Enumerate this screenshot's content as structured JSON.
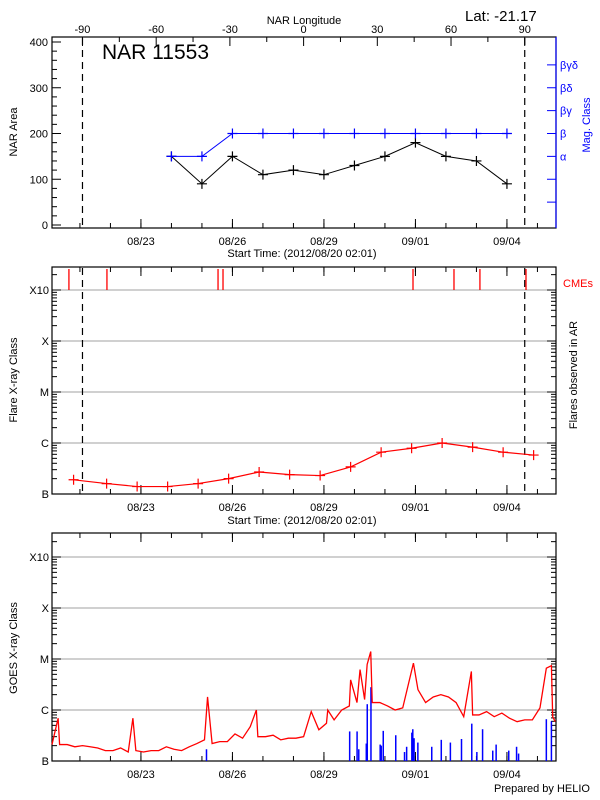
{
  "header": {
    "latitude_label": "Lat: -21.17",
    "top_axis_title": "NAR Longitude",
    "top_axis_ticks": [
      "-90",
      "-60",
      "-30",
      "0",
      "30",
      "60",
      "90"
    ],
    "footer": "Prepared by HELIO"
  },
  "colors": {
    "area": "#000000",
    "mag_class": "#0000ff",
    "flare": "#ff0000",
    "cme": "#ff0000",
    "goes": "#ff0000",
    "ar_flares": "#0000ff",
    "grid": "#a0a0a0"
  },
  "chart_data": [
    {
      "type": "line",
      "title": "NAR 11553",
      "xlabel": "Start Time: (2012/08/20 02:01)",
      "ylabel": "NAR Area",
      "y2label": "Mag. Class",
      "ylim": [
        0,
        400
      ],
      "yticks": [
        "0",
        "100",
        "200",
        "300",
        "400"
      ],
      "xticks": [
        "08/23",
        "08/26",
        "08/29",
        "09/01",
        "09/04"
      ],
      "limb_markers": [
        "08/21 02:00",
        "09/04 14:00"
      ],
      "mag_class_ticks": [
        "α",
        "β",
        "βγ",
        "βδ",
        "βγδ"
      ],
      "series": [
        {
          "key": "area",
          "x": [
            "08/24 00:00",
            "08/25 00:00",
            "08/26 00:00",
            "08/27 00:00",
            "08/28 00:00",
            "08/29 00:00",
            "08/30 00:00",
            "08/31 00:00",
            "09/01 00:00",
            "09/02 00:00",
            "09/03 00:00",
            "09/04 00:00"
          ],
          "values": [
            150,
            90,
            150,
            110,
            120,
            110,
            130,
            150,
            180,
            150,
            140,
            90
          ]
        },
        {
          "key": "mag_class",
          "x": [
            "08/24 00:00",
            "08/25 00:00",
            "08/26 00:00",
            "08/27 00:00",
            "08/28 00:00",
            "08/29 00:00",
            "08/30 00:00",
            "08/31 00:00",
            "09/01 00:00",
            "09/02 00:00",
            "09/03 00:00",
            "09/04 00:00"
          ],
          "values": [
            "α",
            "α",
            "β",
            "β",
            "β",
            "β",
            "β",
            "β",
            "β",
            "β",
            "β",
            "β"
          ]
        }
      ]
    },
    {
      "type": "line",
      "xlabel": "Start Time: (2012/08/20 02:01)",
      "ylabel": "Flare X-ray Class",
      "y2label": "Flares observed in AR",
      "cme_label": "CMEs",
      "yscale": "log",
      "ylim": [
        1e-07,
        0.0028
      ],
      "class_ticks": [
        {
          "label": "B",
          "flux": 1e-07
        },
        {
          "label": "C",
          "flux": 1e-06
        },
        {
          "label": "M",
          "flux": 1e-05
        },
        {
          "label": "X",
          "flux": 0.0001
        },
        {
          "label": "X10",
          "flux": 0.001
        }
      ],
      "grid": true,
      "xticks": [
        "08/23",
        "08/26",
        "08/29",
        "09/01",
        "09/04"
      ],
      "limb_markers": [
        "08/21 02:00",
        "09/04 14:00"
      ],
      "cmes": [
        "08/20 15:20",
        "08/21 21:15",
        "08/25 12:40",
        "08/25 16:35",
        "08/31 22:05",
        "09/02 06:20",
        "09/03 02:45",
        "09/04 15:00"
      ],
      "series": [
        {
          "key": "flare",
          "x": [
            "08/20 19:00",
            "08/21 21:00",
            "08/22 21:00",
            "08/23 21:00",
            "08/24 21:00",
            "08/25 21:00",
            "08/26 21:00",
            "08/27 21:00",
            "08/28 21:00",
            "08/29 21:00",
            "08/30 21:00",
            "08/31 21:00",
            "09/01 21:00",
            "09/02 21:00",
            "09/03 21:00",
            "09/04 21:00"
          ],
          "values": [
            1.9e-07,
            1.6e-07,
            1.4e-07,
            1.4e-07,
            1.6e-07,
            2e-07,
            2.7e-07,
            2.4e-07,
            2.3e-07,
            3.4e-07,
            6.6e-07,
            7.9e-07,
            1e-06,
            8.3e-07,
            6.6e-07,
            5.8e-07
          ]
        }
      ]
    },
    {
      "type": "line",
      "ylabel": "GOES X-ray Class",
      "yscale": "log",
      "ylim": [
        1e-07,
        0.0028
      ],
      "class_ticks": [
        {
          "label": "B",
          "flux": 1e-07
        },
        {
          "label": "C",
          "flux": 1e-06
        },
        {
          "label": "M",
          "flux": 1e-05
        },
        {
          "label": "X",
          "flux": 0.0001
        },
        {
          "label": "X10",
          "flux": 0.001
        }
      ],
      "grid": true,
      "xticks": [
        "08/23",
        "08/26",
        "08/29",
        "09/01",
        "09/04"
      ],
      "series": [
        {
          "key": "goes",
          "x": [
            "08/20 02:00",
            "08/20 06:50",
            "08/20 08:00",
            "08/20 14:00",
            "08/20 20:00",
            "08/21 02:00",
            "08/21 08:00",
            "08/21 14:00",
            "08/21 20:00",
            "08/22 02:00",
            "08/22 08:00",
            "08/22 14:00",
            "08/22 17:40",
            "08/22 20:00",
            "08/23 02:00",
            "08/23 08:00",
            "08/23 14:00",
            "08/23 20:00",
            "08/24 02:00",
            "08/24 08:00",
            "08/24 14:00",
            "08/24 20:00",
            "08/25 02:00",
            "08/25 04:25",
            "08/25 08:00",
            "08/25 14:00",
            "08/25 20:00",
            "08/26 02:00",
            "08/26 08:00",
            "08/26 14:00",
            "08/26 18:50",
            "08/26 20:00",
            "08/27 02:00",
            "08/27 08:00",
            "08/27 14:00",
            "08/27 20:00",
            "08/28 02:00",
            "08/28 08:00",
            "08/28 14:00",
            "08/28 20:00",
            "08/29 02:00",
            "08/29 03:00",
            "08/29 08:00",
            "08/29 14:00",
            "08/29 20:00",
            "08/29 21:00",
            "08/30 02:00",
            "08/30 04:25",
            "08/30 08:00",
            "08/30 10:00",
            "08/30 12:50",
            "08/30 14:00",
            "08/30 20:00",
            "08/31 02:00",
            "08/31 08:00",
            "08/31 14:00",
            "08/31 22:25",
            "09/01 02:00",
            "09/01 08:00",
            "09/01 14:00",
            "09/01 20:00",
            "09/02 02:00",
            "09/02 08:00",
            "09/02 14:00",
            "09/02 20:00",
            "09/02 21:00",
            "09/03 02:00",
            "09/03 08:00",
            "09/03 14:00",
            "09/03 20:00",
            "09/04 02:00",
            "09/04 08:00",
            "09/04 14:00",
            "09/04 20:00",
            "09/05 02:00",
            "09/05 07:00",
            "09/05 11:00",
            "09/05 12:00",
            "09/05 14:00"
          ],
          "values": [
            2.1e-07,
            6.9e-07,
            2.1e-07,
            2.1e-07,
            1.9e-07,
            2e-07,
            1.9e-07,
            1.8e-07,
            1.6e-07,
            1.6e-07,
            1.8e-07,
            1.5e-07,
            6.9e-07,
            1.6e-07,
            1.5e-07,
            1.6e-07,
            1.6e-07,
            1.9e-07,
            1.7e-07,
            1.6e-07,
            1.9e-07,
            2.2e-07,
            2.6e-07,
            1.8e-06,
            2.2e-07,
            2.4e-07,
            2.4e-07,
            3.4e-07,
            2.8e-07,
            4.7e-07,
            1e-06,
            3e-07,
            3e-07,
            3.2e-07,
            2.6e-07,
            2.8e-07,
            2.8e-07,
            3e-07,
            9.3e-07,
            4.1e-07,
            5.5e-07,
            1e-06,
            6.4e-07,
            1e-06,
            1.2e-06,
            3.9e-06,
            1.4e-06,
            6.2e-06,
            1.6e-06,
            7.8e-06,
            1.4e-05,
            1.4e-06,
            1.4e-06,
            1.2e-06,
            1e-06,
            1.1e-06,
            8.3e-06,
            2.5e-06,
            1.4e-06,
            1.8e-06,
            2e-06,
            1.8e-06,
            1.4e-06,
            7.4e-07,
            5.7e-06,
            8e-07,
            8e-07,
            9.3e-07,
            7.4e-07,
            8.7e-07,
            6.9e-07,
            5.9e-07,
            6.4e-07,
            6.4e-07,
            1.1e-06,
            6.6e-06,
            7.4e-06,
            7.4e-07,
            5.9e-07
          ]
        },
        {
          "key": "ar_flares",
          "type": "bar",
          "x": [
            "08/25 03:35",
            "08/29 20:15",
            "08/30 02:05",
            "08/30 03:25",
            "08/30 09:20",
            "08/30 10:05",
            "08/30 13:00",
            "08/30 20:15",
            "08/30 21:05",
            "08/30 22:40",
            "08/31 08:30",
            "08/31 15:25",
            "08/31 17:05",
            "08/31 21:10",
            "08/31 21:55",
            "08/31 22:55",
            "09/01 01:55",
            "09/01 12:50",
            "09/01 20:20",
            "09/02 03:30",
            "09/02 12:15",
            "09/02 20:20",
            "09/03 00:20",
            "09/03 04:50",
            "09/03 12:50",
            "09/03 15:30",
            "09/04 01:25",
            "09/04 07:35",
            "09/04 09:10",
            "09/05 07:00",
            "09/05 11:00"
          ],
          "values": [
            1.7e-07,
            3.8e-07,
            3.8e-07,
            1.7e-07,
            2.2e-07,
            1.3e-06,
            2.8e-06,
            2.1e-07,
            2e-07,
            3.9e-07,
            3.2e-07,
            1.5e-07,
            1.9e-07,
            3.6e-07,
            4.2e-07,
            2.8e-07,
            2.3e-07,
            1.9e-07,
            2.6e-07,
            2.3e-07,
            2.7e-07,
            5.4e-07,
            1.5e-07,
            4.2e-07,
            1.6e-07,
            2.1e-07,
            1.6e-07,
            1.9e-07,
            1.4e-07,
            6.6e-07,
            6e-07
          ]
        }
      ]
    }
  ]
}
